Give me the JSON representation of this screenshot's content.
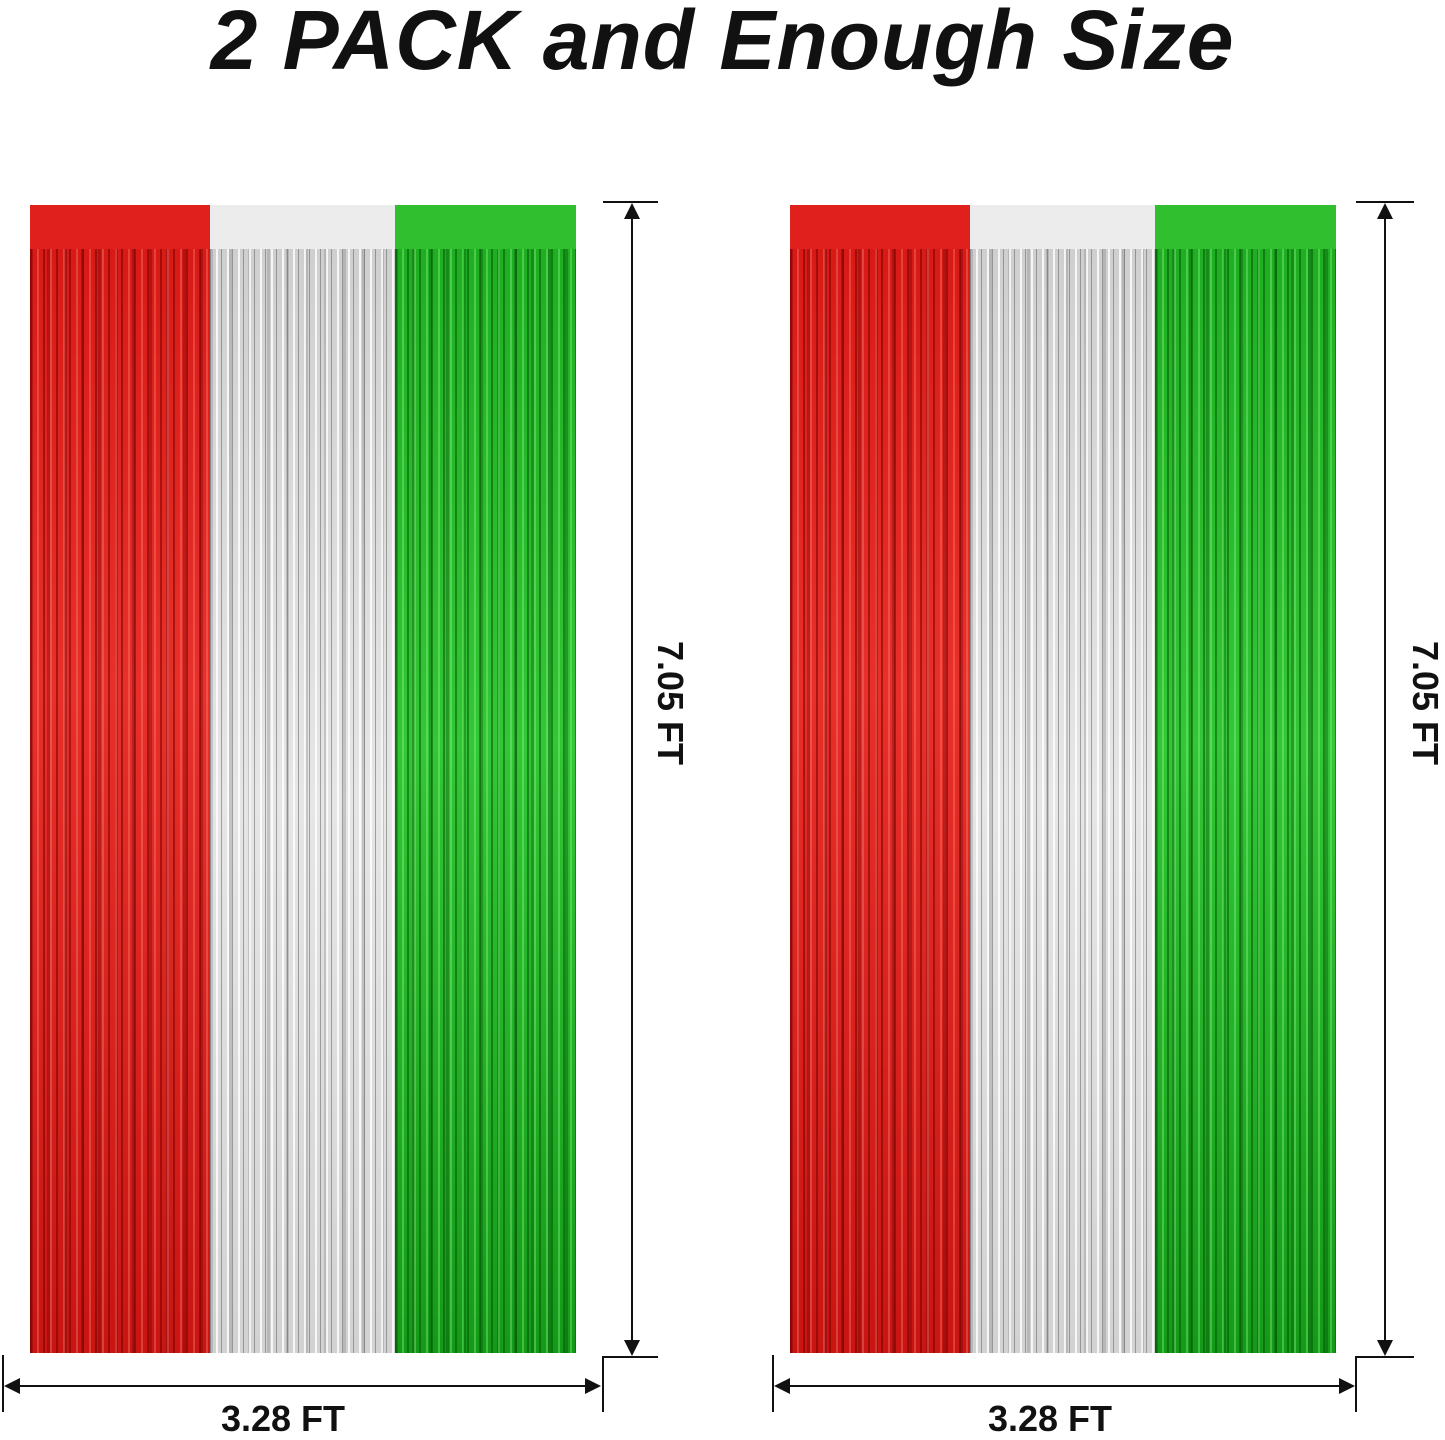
{
  "title": "2 PACK and Enough Size",
  "curtains": [
    {
      "height_label": "7.05 FT",
      "width_label": "3.28 FT",
      "colors": [
        "#e0201c",
        "#e6e6e6",
        "#2fbf2f"
      ]
    },
    {
      "height_label": "7.05 FT",
      "width_label": "3.28 FT",
      "colors": [
        "#e0201c",
        "#e6e6e6",
        "#2fbf2f"
      ]
    }
  ]
}
